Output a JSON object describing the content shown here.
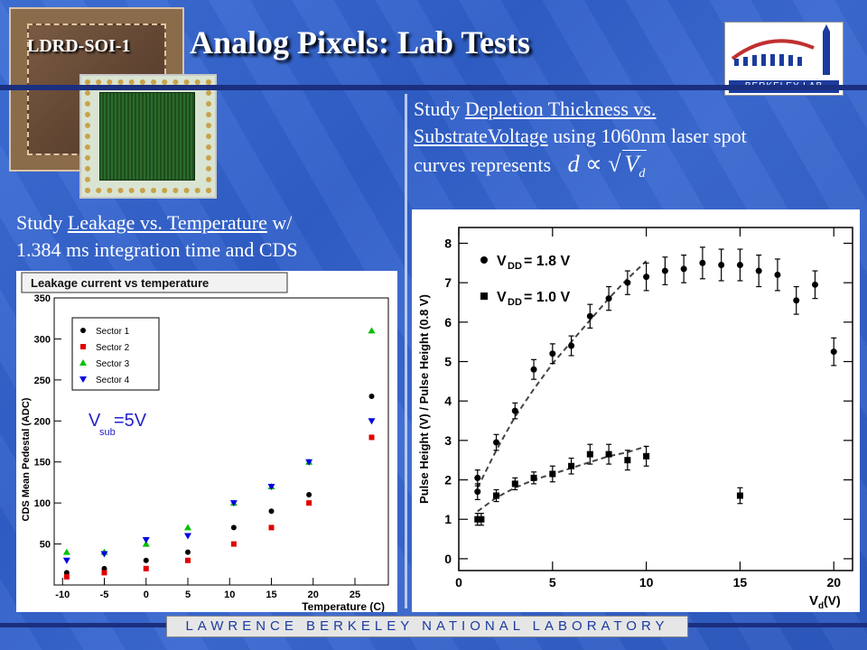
{
  "header": {
    "tag": "LDRD-SOI-1",
    "title": "Analog Pixels: Lab Tests"
  },
  "logo": {
    "text": "BERKELEY LAB"
  },
  "right_text": {
    "line1_prefix": "Study ",
    "line1_link": "Depletion Thickness vs.",
    "line2_link": "SubstrateVoltage",
    "line2_suffix": " using 1060nm laser spot",
    "line3": "curves represents",
    "formula_d": "d",
    "formula_prop": "∝",
    "formula_V": "V",
    "formula_sub": "d"
  },
  "left_text": {
    "line1_prefix": "Study ",
    "line1_link": "Leakage vs. Temperature",
    "line1_suffix": " w/",
    "line2": "1.384 ms integration time and CDS"
  },
  "footer": {
    "text": "LAWRENCE BERKELEY NATIONAL LABORATORY"
  },
  "chart_data": [
    {
      "type": "scatter",
      "title": "Leakage current vs temperature",
      "xlabel": "Temperature (C)",
      "ylabel": "CDS Mean Pedestal (ADC)",
      "xlim": [
        -11,
        29
      ],
      "ylim": [
        0,
        350
      ],
      "xticks": [
        -10,
        -5,
        0,
        5,
        10,
        15,
        20,
        25
      ],
      "yticks": [
        50,
        100,
        150,
        200,
        250,
        300,
        350
      ],
      "annotation": {
        "main": "V",
        "sub": "sub",
        "rest": "=5V"
      },
      "legend_position": "top-left",
      "series": [
        {
          "name": "Sector 1",
          "color": "#000000",
          "marker": "circle",
          "x": [
            -9.5,
            -5,
            0,
            5,
            10.5,
            15,
            19.5,
            27
          ],
          "y": [
            15,
            20,
            30,
            40,
            70,
            90,
            110,
            230
          ]
        },
        {
          "name": "Sector 2",
          "color": "#e00000",
          "marker": "square",
          "x": [
            -9.5,
            -5,
            0,
            5,
            10.5,
            15,
            19.5,
            27
          ],
          "y": [
            10,
            15,
            20,
            30,
            50,
            70,
            100,
            180
          ]
        },
        {
          "name": "Sector 3",
          "color": "#00c000",
          "marker": "triangle-up",
          "x": [
            -9.5,
            -5,
            0,
            5,
            10.5,
            15,
            19.5,
            27
          ],
          "y": [
            40,
            40,
            50,
            70,
            100,
            120,
            150,
            310
          ]
        },
        {
          "name": "Sector 4",
          "color": "#0000e0",
          "marker": "triangle-down",
          "x": [
            -9.5,
            -5,
            0,
            5,
            10.5,
            15,
            19.5,
            27
          ],
          "y": [
            30,
            38,
            55,
            60,
            100,
            120,
            150,
            200
          ]
        }
      ]
    },
    {
      "type": "scatter",
      "xlabel_main": "V",
      "xlabel_sub": "d",
      "xlabel_rest": " (V)",
      "ylabel": "Pulse Height (V) / Pulse Height (0.8 V)",
      "xlim": [
        0,
        21
      ],
      "ylim": [
        -0.3,
        8.4
      ],
      "xticks": [
        0,
        5,
        10,
        15,
        20
      ],
      "yticks": [
        0,
        1,
        2,
        3,
        4,
        5,
        6,
        7,
        8
      ],
      "legend_position": "top-left",
      "series": [
        {
          "name_main": "V",
          "name_sub": "DD",
          "name_rest": " = 1.8 V",
          "marker": "circle",
          "color": "#000000",
          "x": [
            1,
            1,
            2,
            3,
            4,
            5,
            6,
            7,
            8,
            9,
            10,
            11,
            12,
            13,
            14,
            15,
            16,
            17,
            18,
            19,
            20
          ],
          "y": [
            1.7,
            2.05,
            2.95,
            3.75,
            4.8,
            5.2,
            5.4,
            6.15,
            6.6,
            7.0,
            7.15,
            7.3,
            7.35,
            7.5,
            7.45,
            7.45,
            7.3,
            7.2,
            6.55,
            6.95,
            5.25
          ],
          "err": [
            0.2,
            0.2,
            0.2,
            0.2,
            0.25,
            0.25,
            0.25,
            0.3,
            0.3,
            0.3,
            0.35,
            0.35,
            0.35,
            0.4,
            0.4,
            0.4,
            0.4,
            0.4,
            0.35,
            0.35,
            0.35
          ]
        },
        {
          "name_main": "V",
          "name_sub": "DD",
          "name_rest": " = 1.0 V",
          "marker": "square",
          "color": "#000000",
          "x": [
            1,
            1.2,
            2,
            3,
            4,
            5,
            6,
            7,
            8,
            9,
            10,
            15
          ],
          "y": [
            1.0,
            1.0,
            1.6,
            1.9,
            2.05,
            2.15,
            2.35,
            2.65,
            2.65,
            2.5,
            2.6,
            1.6
          ],
          "err": [
            0.15,
            0.15,
            0.15,
            0.15,
            0.15,
            0.2,
            0.2,
            0.25,
            0.25,
            0.25,
            0.25,
            0.2
          ]
        }
      ],
      "fits": [
        {
          "x": [
            1,
            2,
            3,
            4,
            5,
            6,
            7,
            8,
            9,
            10
          ],
          "y": [
            1.8,
            2.75,
            3.6,
            4.3,
            4.95,
            5.5,
            6.05,
            6.6,
            7.1,
            7.55
          ]
        },
        {
          "x": [
            1,
            2,
            3,
            4,
            5,
            6,
            7,
            8,
            9,
            10
          ],
          "y": [
            1.2,
            1.55,
            1.8,
            2.0,
            2.15,
            2.3,
            2.45,
            2.6,
            2.7,
            2.85
          ]
        }
      ]
    }
  ]
}
